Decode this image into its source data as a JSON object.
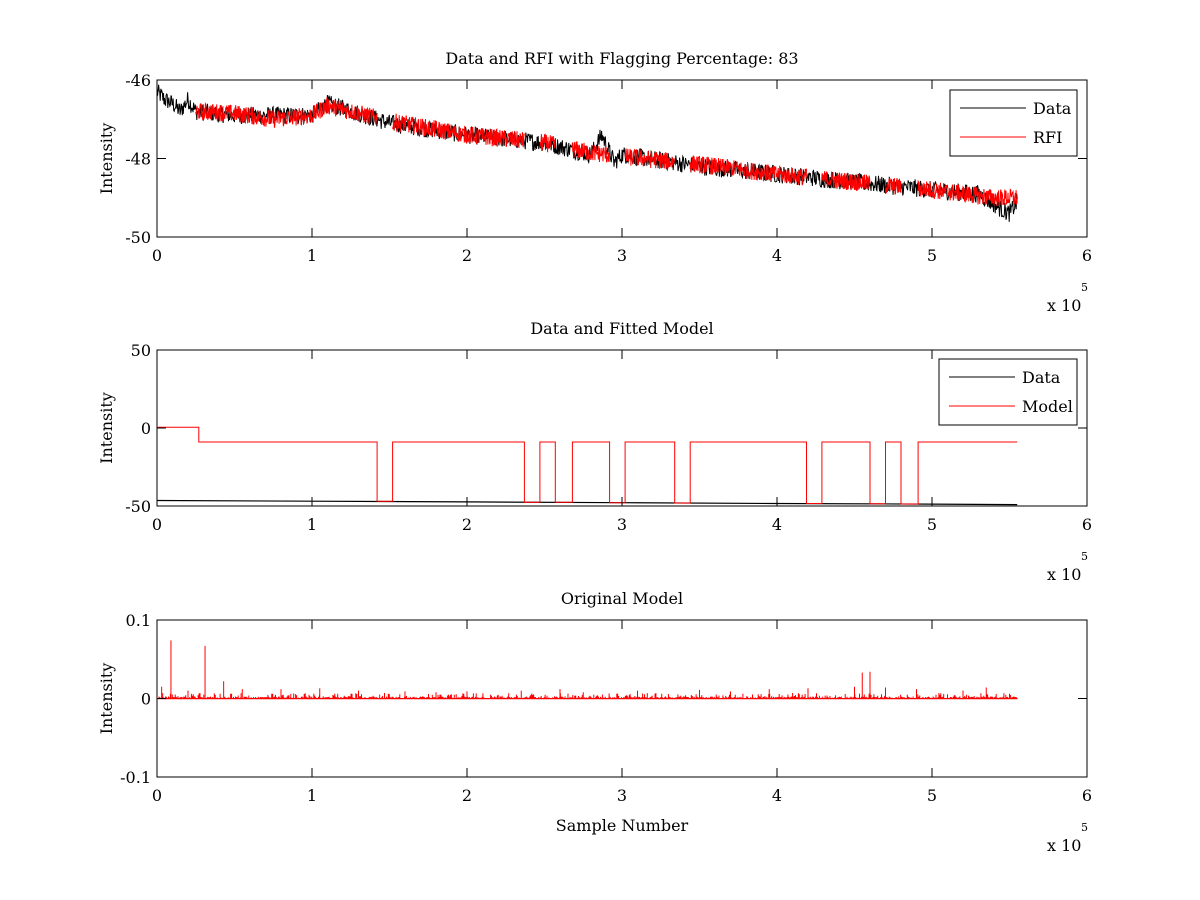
{
  "chart_data": [
    {
      "type": "line",
      "title": "Data and RFI with Flagging Percentage: 83",
      "xlabel": "",
      "ylabel": "Intensity",
      "xlim": [
        0,
        6
      ],
      "ylim": [
        -50,
        -46
      ],
      "xticks": [
        "0",
        "1",
        "2",
        "3",
        "4",
        "5",
        "6"
      ],
      "yticks": [
        "-46",
        "-48",
        "-50"
      ],
      "x_multiplier_base": "x 10",
      "x_multiplier_exp": "5",
      "legend": "top-right",
      "colors": {
        "data": "#000000",
        "rfi": "#ff0000"
      },
      "series": [
        {
          "name": "Data",
          "x": [
            0,
            0.05,
            0.1,
            0.15,
            0.2,
            0.25,
            0.5,
            1.0,
            1.1,
            1.5,
            2.0,
            2.5,
            2.8,
            2.87,
            2.95,
            3.0,
            3.5,
            4.0,
            4.5,
            5.0,
            5.3,
            5.45,
            5.5,
            5.55
          ],
          "y": [
            -46.3,
            -46.5,
            -46.6,
            -46.8,
            -46.5,
            -46.8,
            -46.9,
            -46.9,
            -46.6,
            -47.1,
            -47.4,
            -47.6,
            -47.9,
            -47.4,
            -48.1,
            -47.9,
            -48.2,
            -48.4,
            -48.6,
            -48.8,
            -48.9,
            -49.3,
            -49.4,
            -49.1
          ]
        },
        {
          "name": "RFI",
          "x": [
            0.25,
            0.5,
            0.75,
            1.0,
            1.1,
            1.5,
            2.0,
            2.5,
            2.8,
            3.0,
            3.5,
            4.0,
            4.5,
            5.0,
            5.4
          ],
          "y": [
            -46.8,
            -46.85,
            -47.0,
            -46.9,
            -46.65,
            -47.05,
            -47.4,
            -47.6,
            -47.85,
            -47.95,
            -48.15,
            -48.4,
            -48.6,
            -48.8,
            -49.0
          ]
        }
      ],
      "flag_segments_x": [
        [
          0.25,
          1.42
        ],
        [
          1.52,
          2.37
        ],
        [
          2.47,
          2.57
        ],
        [
          2.68,
          2.92
        ],
        [
          3.02,
          3.34
        ],
        [
          3.44,
          4.19
        ],
        [
          4.29,
          4.6
        ],
        [
          4.7,
          4.8
        ],
        [
          4.91,
          5.55
        ]
      ]
    },
    {
      "type": "line",
      "title": "Data and Fitted Model",
      "xlabel": "",
      "ylabel": "Intensity",
      "xlim": [
        0,
        6
      ],
      "ylim": [
        -50,
        50
      ],
      "xticks": [
        "0",
        "1",
        "2",
        "3",
        "4",
        "5",
        "6"
      ],
      "yticks": [
        "50",
        "0",
        "-50"
      ],
      "x_multiplier_base": "x 10",
      "x_multiplier_exp": "5",
      "legend": "top-right",
      "colors": {
        "data": "#000000",
        "model": "#ff0000"
      },
      "series": [
        {
          "name": "Data",
          "x": [
            0,
            1,
            2,
            3,
            4,
            5,
            5.55
          ],
          "y": [
            -46.5,
            -46.9,
            -47.4,
            -47.9,
            -48.4,
            -48.8,
            -49.1
          ]
        },
        {
          "name": "Model",
          "x": [
            0,
            0.27,
            0.27,
            1.42,
            1.42,
            1.52,
            1.52,
            2.37,
            2.37,
            2.47,
            2.47,
            2.57,
            2.57,
            2.68,
            2.68,
            2.92,
            2.92,
            3.02,
            3.02,
            3.34,
            3.34,
            3.44,
            3.44,
            4.19,
            4.19,
            4.29,
            4.29,
            4.6,
            4.6,
            4.7,
            4.7,
            4.8,
            4.8,
            4.91,
            4.91,
            5.55
          ],
          "y": [
            0.5,
            0.5,
            -9,
            -9,
            -46.9,
            -46.9,
            -9,
            -9,
            -47.6,
            -47.6,
            -9,
            -9,
            -47.6,
            -47.6,
            -9,
            -9,
            -47.9,
            -47.9,
            -9,
            -9,
            -48.1,
            -48.1,
            -9,
            -9,
            -48.4,
            -48.4,
            -9,
            -9,
            -48.6,
            -48.6,
            -9,
            -9,
            -48.7,
            -48.7,
            -9,
            -9
          ]
        }
      ]
    },
    {
      "type": "line",
      "title": "Original Model",
      "xlabel": "Sample Number",
      "ylabel": "Intensity",
      "xlim": [
        0,
        6
      ],
      "ylim": [
        -0.1,
        0.1
      ],
      "xticks": [
        "0",
        "1",
        "2",
        "3",
        "4",
        "5",
        "6"
      ],
      "yticks": [
        "0.1",
        "0",
        "-0.1"
      ],
      "x_multiplier_base": "x 10",
      "x_multiplier_exp": "5",
      "colors": {
        "model": "#ff0000"
      },
      "series": [
        {
          "x_range": [
            0,
            5.55
          ],
          "baseline": 0,
          "spikes": [
            [
              0.03,
              0.015
            ],
            [
              0.09,
              0.074
            ],
            [
              0.2,
              0.01
            ],
            [
              0.31,
              0.067
            ],
            [
              0.43,
              0.022
            ],
            [
              0.55,
              0.012
            ],
            [
              0.8,
              0.012
            ],
            [
              1.05,
              0.013
            ],
            [
              1.3,
              0.01
            ],
            [
              1.6,
              0.009
            ],
            [
              1.8,
              0.008
            ],
            [
              2.0,
              0.009
            ],
            [
              2.35,
              0.01
            ],
            [
              2.6,
              0.012
            ],
            [
              2.75,
              0.008
            ],
            [
              3.1,
              0.01
            ],
            [
              3.5,
              0.011
            ],
            [
              3.7,
              0.009
            ],
            [
              3.95,
              0.012
            ],
            [
              4.2,
              0.013
            ],
            [
              4.5,
              0.015
            ],
            [
              4.55,
              0.033
            ],
            [
              4.6,
              0.034
            ],
            [
              4.7,
              0.014
            ],
            [
              4.9,
              0.012
            ],
            [
              5.2,
              0.01
            ],
            [
              5.35,
              0.014
            ],
            [
              5.5,
              0.006
            ]
          ]
        }
      ]
    }
  ]
}
